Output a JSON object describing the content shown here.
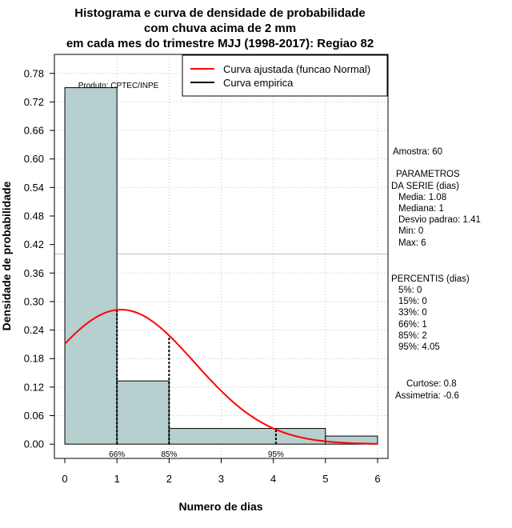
{
  "chart_data": {
    "type": "histogram",
    "title_lines": [
      "Histograma e curva de densidade de probabilidade",
      "com chuva acima de 2 mm",
      "em cada mes do trimestre MJJ (1998-2017): Regiao 82"
    ],
    "xlabel": "Numero de dias",
    "ylabel": "Densidade de probabilidade",
    "xlim": [
      -0.2,
      6.2
    ],
    "ylim": [
      -0.03,
      0.82
    ],
    "xticks": [
      0,
      1,
      2,
      3,
      4,
      5,
      6
    ],
    "yticks": [
      0.0,
      0.06,
      0.12,
      0.18,
      0.24,
      0.3,
      0.36,
      0.42,
      0.48,
      0.54,
      0.6,
      0.66,
      0.72,
      0.78
    ],
    "ytick_labels": [
      "0.00",
      "0.06",
      "0.12",
      "0.18",
      "0.24",
      "0.30",
      "0.36",
      "0.42",
      "0.48",
      "0.54",
      "0.60",
      "0.66",
      "0.72",
      "0.78"
    ],
    "bins": [
      {
        "start": 0,
        "end": 1,
        "density": 0.75
      },
      {
        "start": 1,
        "end": 2,
        "density": 0.133
      },
      {
        "start": 2,
        "end": 5,
        "density": 0.033
      },
      {
        "start": 5,
        "end": 6,
        "density": 0.017
      }
    ],
    "grid_x": [
      1,
      2,
      3,
      4,
      5,
      6
    ],
    "grid_y_dotted": [
      0.06,
      0.12,
      0.18,
      0.24,
      0.3,
      0.36,
      0.54,
      0.6,
      0.66,
      0.72,
      0.78
    ],
    "grid_y_solid": [
      0.4
    ],
    "normal_curve": {
      "mean": 1.08,
      "sd": 1.41,
      "x_from": 0,
      "x_to": 6
    },
    "percentile_markers": [
      {
        "label": "66%",
        "x": 1
      },
      {
        "label": "85%",
        "x": 2
      },
      {
        "label": "95%",
        "x": 4.05
      }
    ],
    "legend": [
      {
        "label": "Curva ajustada (funcao Normal)",
        "color": "#ff0000"
      },
      {
        "label": "Curva empirica",
        "color": "#000000"
      }
    ],
    "legend_position": "top-right",
    "source_note": "Produto: CPTEC/INPE",
    "colors": {
      "bar_fill": "#b6cfcf",
      "curve": "#ff0000",
      "grid": "#bebebe"
    }
  },
  "side_panel": {
    "sample": "Amostra: 60",
    "params_title_1": "PARAMETROS",
    "params_title_2": "DA SERIE (dias)",
    "params": [
      "Media: 1.08",
      "Mediana: 1",
      "Desvio padrao: 1.41",
      "Min: 0",
      "Max: 6"
    ],
    "percentis_title": "PERCENTIS (dias)",
    "percentis": [
      "5%: 0",
      "15%: 0",
      "33%: 0",
      "66%: 1",
      "85%: 2",
      "95%: 4.05"
    ],
    "kurtosis": "Curtose: 0.8",
    "skewness": "Assimetria: -0.6"
  }
}
